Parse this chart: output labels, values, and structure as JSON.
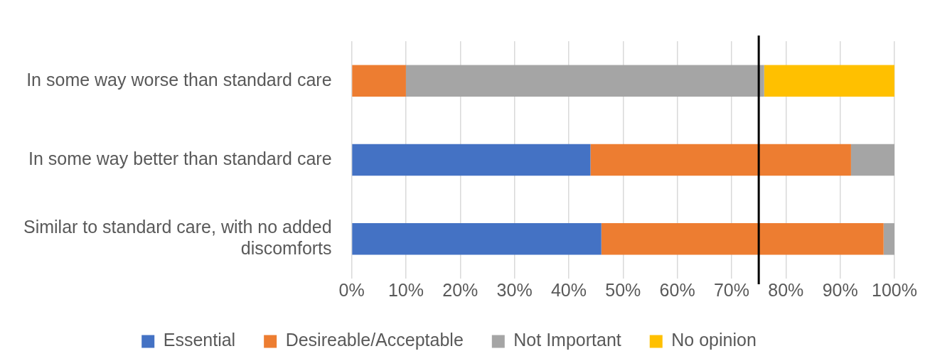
{
  "chart_data": {
    "type": "bar",
    "orientation": "horizontal",
    "stacked": true,
    "categories": [
      "In some way worse than standard care",
      "In some way better than standard care",
      "Similar to standard care, with no added discomforts"
    ],
    "series": [
      {
        "name": "Essential",
        "color": "#4472c4",
        "values": [
          0,
          44,
          46
        ]
      },
      {
        "name": "Desireable/Acceptable",
        "color": "#ed7d31",
        "values": [
          10,
          48,
          52
        ]
      },
      {
        "name": "Not Important",
        "color": "#a5a5a5",
        "values": [
          66,
          8,
          2
        ]
      },
      {
        "name": "No opinion",
        "color": "#ffc000",
        "values": [
          24,
          0,
          0
        ]
      }
    ],
    "xlim": [
      0,
      100
    ],
    "xticks": [
      {
        "value": 0,
        "label": "0%"
      },
      {
        "value": 10,
        "label": "10%"
      },
      {
        "value": 20,
        "label": "20%"
      },
      {
        "value": 30,
        "label": "30%"
      },
      {
        "value": 40,
        "label": "40%"
      },
      {
        "value": 50,
        "label": "50%"
      },
      {
        "value": 60,
        "label": "60%"
      },
      {
        "value": 70,
        "label": "70%"
      },
      {
        "value": 80,
        "label": "80%"
      },
      {
        "value": 90,
        "label": "90%"
      },
      {
        "value": 100,
        "label": "100%"
      }
    ],
    "grid": "x",
    "legend": "bottom",
    "ref_lines": [
      {
        "axis": "x",
        "value": 75,
        "color": "#000000"
      }
    ]
  }
}
